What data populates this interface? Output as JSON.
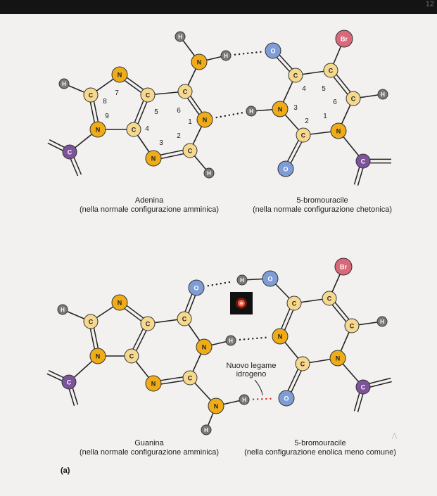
{
  "page_number": "12",
  "colors": {
    "C": "#f6d98f",
    "N": "#f0ac17",
    "O": "#7e9dd6",
    "H": "#7a7a7a",
    "Br": "#d9687a",
    "Cside": "#7d539b",
    "bond": "#222222",
    "hbond_new": "#d8301a",
    "cursor": "#e83a22"
  },
  "top": {
    "left_caption": {
      "name": "Adenina",
      "desc": "(nella normale configurazione amminica)"
    },
    "right_caption": {
      "name": "5-bromouracile",
      "desc": "(nella normale configurazione chetonica)"
    },
    "ring_numbers": {
      "n7": "7",
      "n8": "8",
      "n9": "9",
      "n5": "5",
      "n6": "6",
      "n4": "4",
      "n3": "3",
      "n2": "2",
      "n1": "1",
      "u4": "4",
      "u5": "5",
      "u6": "6",
      "u3": "3",
      "u2": "2",
      "u1": "1"
    }
  },
  "bottom": {
    "left_caption": {
      "name": "Guanina",
      "desc": "(nella normale configurazione amminica)"
    },
    "right_caption": {
      "name": "5-bromouracile",
      "desc": "(nella configurazione enolica meno comune)"
    },
    "annotation": {
      "line1": "Nuovo legame",
      "line2": "idrogeno"
    }
  },
  "panel_label": "(a)",
  "atom_labels": {
    "C": "C",
    "N": "N",
    "O": "O",
    "H": "H",
    "Br": "Br"
  }
}
